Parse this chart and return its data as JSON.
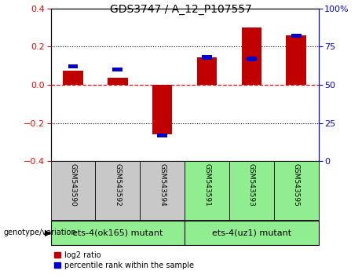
{
  "title": "GDS3747 / A_12_P107557",
  "samples": [
    "GSM543590",
    "GSM543592",
    "GSM543594",
    "GSM543591",
    "GSM543593",
    "GSM543595"
  ],
  "log2_ratio": [
    0.075,
    0.035,
    -0.26,
    0.145,
    0.3,
    0.26
  ],
  "percentile_rank": [
    62,
    60,
    17,
    68,
    67,
    82
  ],
  "group1_label": "ets-4(ok165) mutant",
  "group2_label": "ets-4(uz1) mutant",
  "group1_indices": [
    0,
    1,
    2
  ],
  "group2_indices": [
    3,
    4,
    5
  ],
  "ylim_left": [
    -0.4,
    0.4
  ],
  "ylim_right": [
    0,
    100
  ],
  "yticks_left": [
    -0.4,
    -0.2,
    0.0,
    0.2,
    0.4
  ],
  "yticks_right": [
    0,
    25,
    50,
    75,
    100
  ],
  "bar_color_red": "#C00000",
  "bar_color_blue": "#0000CC",
  "group1_bg": "#C8C8C8",
  "group2_bg": "#90EE90",
  "legend_red_label": "log2 ratio",
  "legend_blue_label": "percentile rank within the sample",
  "bar_width": 0.45,
  "title_fontsize": 10,
  "tick_fontsize": 8,
  "sample_fontsize": 6.5,
  "group_fontsize": 8,
  "legend_fontsize": 7
}
